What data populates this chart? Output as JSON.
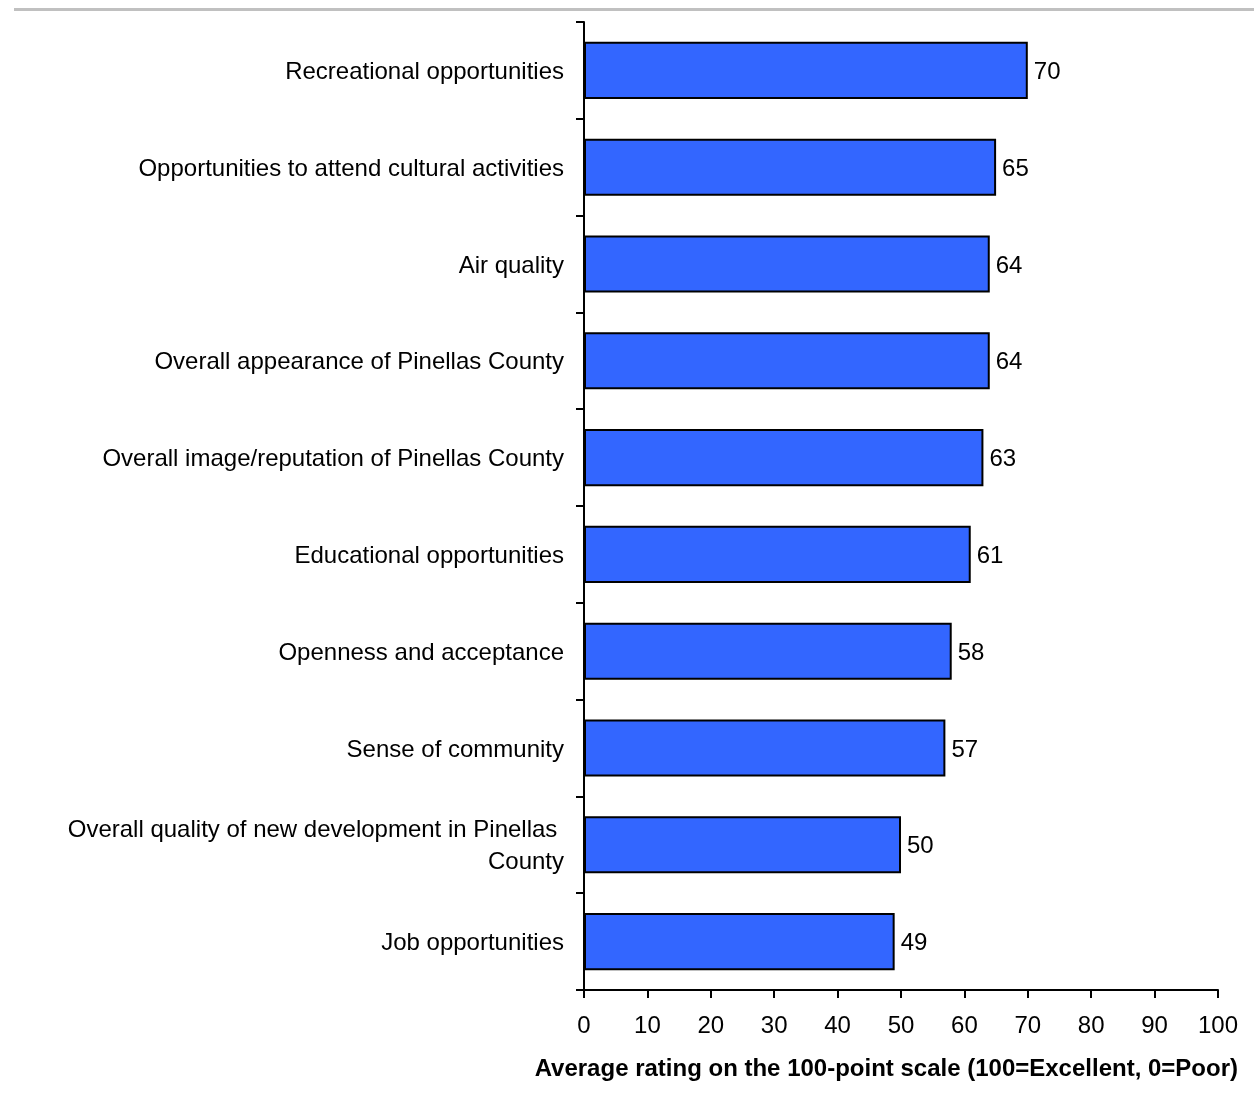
{
  "chart_data": {
    "type": "bar",
    "orientation": "horizontal",
    "categories": [
      "Recreational opportunities",
      "Opportunities to attend cultural activities",
      "Air quality",
      "Overall appearance of Pinellas County",
      "Overall image/reputation of Pinellas County",
      "Educational opportunities",
      "Openness and acceptance",
      "Sense of community",
      "Overall quality of new development in Pinellas County",
      "Job opportunities"
    ],
    "values": [
      70,
      65,
      64,
      64,
      63,
      61,
      58,
      57,
      50,
      49
    ],
    "color": "#3366ff",
    "xlabel": "Average rating on the 100-point scale (100=Excellent, 0=Poor)",
    "xlim": [
      0,
      100
    ],
    "xticks": [
      0,
      10,
      20,
      30,
      40,
      50,
      60,
      70,
      80,
      90,
      100
    ],
    "data_labels": true
  }
}
